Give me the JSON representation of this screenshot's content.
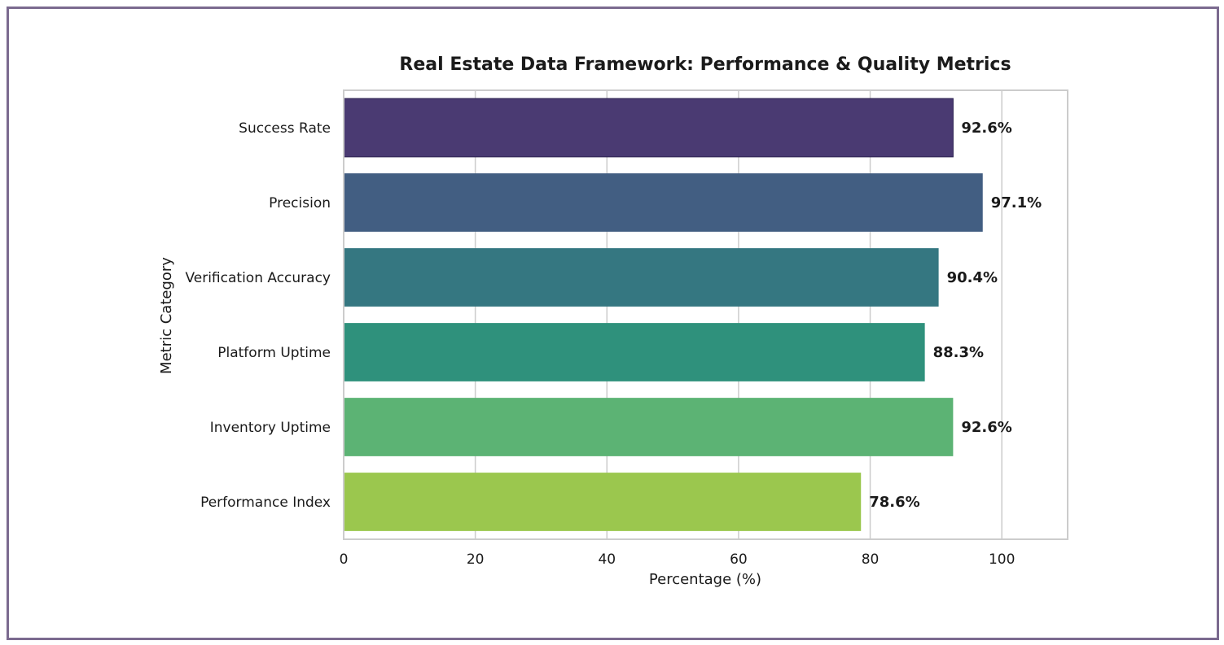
{
  "chart_data": {
    "type": "bar",
    "orientation": "horizontal",
    "title": "Real Estate Data Framework: Performance & Quality Metrics",
    "xlabel": "Percentage (%)",
    "ylabel": "Metric Category",
    "xlim": [
      0,
      110
    ],
    "xticks": [
      0,
      20,
      40,
      60,
      80,
      100
    ],
    "grid": "vertical",
    "categories": [
      "Success Rate",
      "Precision",
      "Verification Accuracy",
      "Platform Uptime",
      "Inventory Uptime",
      "Performance Index"
    ],
    "values": [
      92.6,
      97.1,
      90.4,
      88.3,
      92.6,
      78.6
    ],
    "value_labels": [
      "92.6%",
      "97.1%",
      "90.4%",
      "88.3%",
      "92.6%",
      "78.6%"
    ],
    "colors": [
      "#4a3a72",
      "#425e82",
      "#357781",
      "#2f917c",
      "#5cb374",
      "#9bc74e"
    ]
  }
}
